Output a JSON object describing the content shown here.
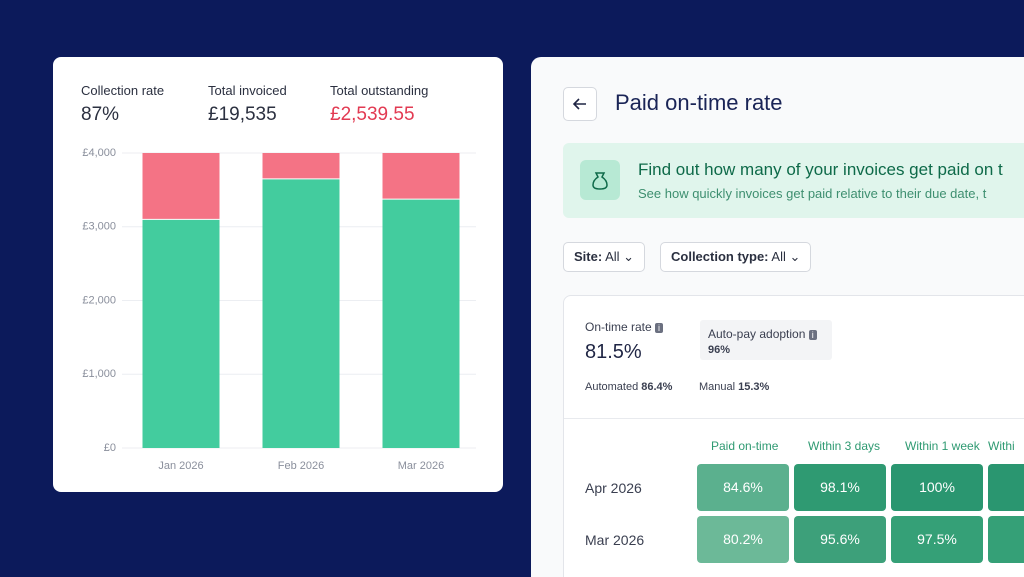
{
  "left_card": {
    "stats": [
      {
        "label": "Collection rate",
        "value": "87%"
      },
      {
        "label": "Total invoiced",
        "value": "£19,535"
      },
      {
        "label": "Total outstanding",
        "value": "£2,539.55"
      }
    ],
    "chart_data": {
      "type": "bar",
      "stacked": true,
      "categories": [
        "Jan 2026",
        "Feb 2026",
        "Mar 2026"
      ],
      "series": [
        {
          "color": "#43cc9e",
          "values": [
            3100,
            3650,
            3375
          ]
        },
        {
          "color": "#f47385",
          "values": [
            900,
            350,
            625
          ]
        }
      ],
      "ylim": [
        0,
        4000
      ],
      "yticks": [
        {
          "value": 0,
          "label": "£0"
        },
        {
          "value": 1000,
          "label": "£1,000"
        },
        {
          "value": 2000,
          "label": "£2,000"
        },
        {
          "value": 3000,
          "label": "£3,000"
        },
        {
          "value": 4000,
          "label": "£4,000"
        }
      ],
      "grid": true
    }
  },
  "right_panel": {
    "title": "Paid on-time rate",
    "banner": {
      "title": "Find out how many of your invoices get paid on t",
      "text": "See how quickly invoices get paid relative to their due date, t"
    },
    "filters": [
      {
        "label": "Site:",
        "value": "All"
      },
      {
        "label": "Collection type:",
        "value": "All"
      }
    ],
    "summary": {
      "on_time_label": "On-time rate",
      "on_time_value": "81.5%",
      "autopay_label": "Auto-pay adoption",
      "autopay_value": "96%",
      "automated_label": "Automated",
      "automated_value": "86.4%",
      "manual_label": "Manual",
      "manual_value": "15.3%"
    },
    "table": {
      "headers": [
        "Paid on-time",
        "Within 3 days",
        "Within 1 week",
        "Withi"
      ],
      "rows": [
        {
          "label": "Apr 2026",
          "cells": [
            "84.6%",
            "98.1%",
            "100%"
          ]
        },
        {
          "label": "Mar 2026",
          "cells": [
            "80.2%",
            "95.6%",
            "97.5%"
          ]
        }
      ]
    }
  }
}
